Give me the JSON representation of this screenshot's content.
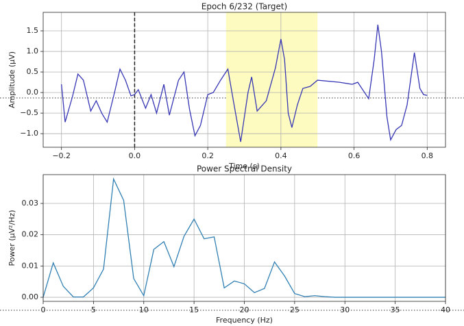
{
  "chart_data": [
    {
      "type": "line",
      "title": "Epoch 6/232 (Target)",
      "x_label": "Time (s)",
      "y_label": "Amplitude (μV)",
      "x": [
        -0.2,
        -0.19,
        -0.17,
        -0.155,
        -0.14,
        -0.12,
        -0.105,
        -0.09,
        -0.075,
        -0.055,
        -0.04,
        -0.025,
        -0.01,
        0.0,
        0.01,
        0.03,
        0.045,
        0.06,
        0.08,
        0.095,
        0.12,
        0.135,
        0.15,
        0.165,
        0.18,
        0.2,
        0.215,
        0.235,
        0.255,
        0.27,
        0.29,
        0.31,
        0.32,
        0.335,
        0.36,
        0.385,
        0.4,
        0.41,
        0.42,
        0.43,
        0.445,
        0.46,
        0.48,
        0.5,
        0.56,
        0.595,
        0.61,
        0.64,
        0.655,
        0.665,
        0.675,
        0.69,
        0.7,
        0.715,
        0.73,
        0.745,
        0.765,
        0.78,
        0.79,
        0.8
      ],
      "values": [
        0.2,
        -0.72,
        -0.1,
        0.45,
        0.3,
        -0.45,
        -0.2,
        -0.5,
        -0.72,
        0.0,
        0.57,
        0.3,
        -0.08,
        -0.05,
        0.07,
        -0.38,
        -0.05,
        -0.5,
        0.2,
        -0.55,
        0.3,
        0.5,
        -0.4,
        -1.05,
        -0.8,
        -0.05,
        0.0,
        0.3,
        0.57,
        -0.2,
        -1.2,
        0.0,
        0.38,
        -0.45,
        -0.2,
        0.6,
        1.3,
        0.8,
        -0.5,
        -0.85,
        -0.3,
        0.1,
        0.15,
        0.3,
        0.25,
        0.2,
        0.25,
        -0.15,
        0.8,
        1.65,
        1.0,
        -0.6,
        -1.15,
        -0.9,
        -0.8,
        -0.3,
        0.97,
        0.1,
        -0.05,
        -0.07
      ],
      "color": "#3535b5",
      "grid": true,
      "shaded_region": {
        "xlim": [
          0.25,
          0.5
        ],
        "color": "#fdfbbf"
      },
      "vline": 0.0,
      "xlim": [
        -0.25,
        0.85
      ],
      "ylim": [
        -1.33,
        1.95
      ],
      "xticks": [
        {
          "value": -0.2,
          "label": "−0.2"
        },
        {
          "value": 0.0,
          "label": "0.0"
        },
        {
          "value": 0.2,
          "label": "0.2"
        },
        {
          "value": 0.4,
          "label": "0.4"
        },
        {
          "value": 0.6,
          "label": "0.6"
        },
        {
          "value": 0.8,
          "label": "0.8"
        }
      ],
      "yticks": [
        {
          "value": -1.0,
          "label": "−1.0"
        },
        {
          "value": -0.5,
          "label": "−0.5"
        },
        {
          "value": 0.0,
          "label": "0.0"
        },
        {
          "value": 0.5,
          "label": "0.5"
        },
        {
          "value": 1.0,
          "label": "1.0"
        },
        {
          "value": 1.5,
          "label": "1.5"
        }
      ]
    },
    {
      "type": "line",
      "title": "Power Spectral Density",
      "x_label": "Frequency (Hz)",
      "y_label": "Power (μV²/Hz)",
      "x": [
        0,
        1,
        2,
        3,
        4,
        5,
        6,
        7,
        8,
        9,
        10,
        11,
        12,
        13,
        14,
        15,
        16,
        17,
        18,
        19,
        20,
        21,
        22,
        23,
        24,
        25,
        26,
        27,
        28,
        29,
        30,
        31,
        32,
        33,
        34,
        35,
        36,
        37,
        38,
        39,
        40
      ],
      "values": [
        0.0,
        0.011,
        0.0035,
        0.0001,
        0.0001,
        0.003,
        0.009,
        0.0378,
        0.031,
        0.006,
        0.0005,
        0.0153,
        0.0178,
        0.0098,
        0.0195,
        0.025,
        0.0187,
        0.0193,
        0.003,
        0.0052,
        0.0043,
        0.0015,
        0.0028,
        0.0113,
        0.0068,
        0.0012,
        0.0002,
        0.0005,
        0.0002,
        0.0,
        0.0,
        0.0,
        0.0,
        0.0,
        0.0,
        0.0,
        0.0,
        0.0,
        0.0,
        0.0,
        0.0
      ],
      "color": "#2f7fb3",
      "grid": true,
      "xlim": [
        0,
        40
      ],
      "ylim": [
        -0.0013,
        0.0392
      ],
      "xticks": [
        0,
        5,
        10,
        15,
        20,
        25,
        30,
        35,
        40
      ],
      "yticks": [
        {
          "value": 0.0,
          "label": "0.00"
        },
        {
          "value": 0.01,
          "label": "0.01"
        },
        {
          "value": 0.02,
          "label": "0.02"
        },
        {
          "value": 0.03,
          "label": "0.03"
        }
      ]
    }
  ]
}
